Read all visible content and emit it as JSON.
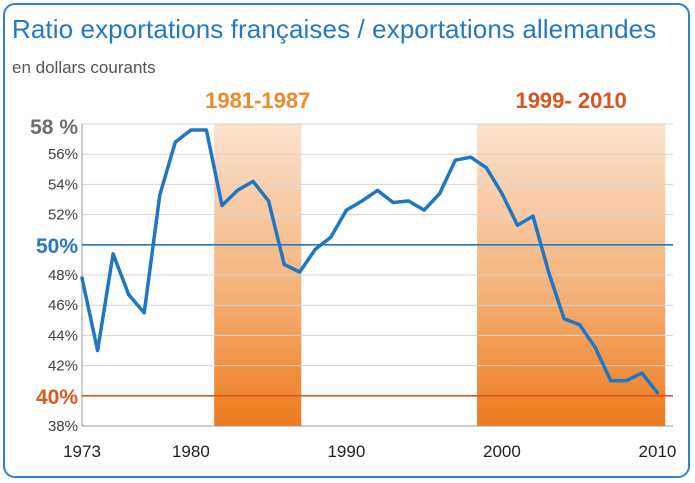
{
  "title": "Ratio exportations françaises / exportations allemandes",
  "subtitle": "en dollars courants",
  "chart_data": {
    "type": "line",
    "title": "Ratio exportations françaises / exportations allemandes",
    "subtitle": "en dollars courants",
    "xlim": [
      1973,
      2011
    ],
    "ylim": [
      38,
      58
    ],
    "y_ticks": [
      {
        "value": 38,
        "label": "38%"
      },
      {
        "value": 40,
        "label": "40%"
      },
      {
        "value": 42,
        "label": "42%"
      },
      {
        "value": 44,
        "label": "44%"
      },
      {
        "value": 46,
        "label": "46%"
      },
      {
        "value": 48,
        "label": "48%"
      },
      {
        "value": 50,
        "label": "50%"
      },
      {
        "value": 52,
        "label": "52%"
      },
      {
        "value": 54,
        "label": "54%"
      },
      {
        "value": 56,
        "label": "56%"
      },
      {
        "value": 58,
        "label": "58 %"
      }
    ],
    "x_ticks": [
      {
        "value": 1973,
        "label": "1973"
      },
      {
        "value": 1980,
        "label": "1980"
      },
      {
        "value": 1990,
        "label": "1990"
      },
      {
        "value": 2000,
        "label": "2000"
      },
      {
        "value": 2010,
        "label": "2010"
      }
    ],
    "series": [
      {
        "color": "#1f77c4",
        "x": [
          1973,
          1974,
          1975,
          1976,
          1977,
          1978,
          1979,
          1980,
          1981,
          1982,
          1983,
          1984,
          1985,
          1986,
          1987,
          1988,
          1989,
          1990,
          1991,
          1992,
          1993,
          1994,
          1995,
          1996,
          1997,
          1998,
          1999,
          2000,
          2001,
          2002,
          2003,
          2004,
          2005,
          2006,
          2007,
          2008,
          2009,
          2010
        ],
        "y": [
          47.8,
          43.0,
          49.4,
          46.7,
          45.5,
          53.3,
          56.8,
          57.6,
          57.6,
          52.6,
          53.6,
          54.2,
          52.9,
          48.7,
          48.2,
          49.7,
          50.5,
          52.3,
          52.9,
          53.6,
          52.8,
          52.9,
          52.3,
          53.4,
          55.6,
          55.8,
          55.1,
          53.4,
          51.3,
          51.9,
          48.2,
          45.1,
          44.7,
          43.2,
          41.0,
          41.0,
          41.5,
          40.2
        ]
      }
    ],
    "reference_lines": [
      {
        "value": 50,
        "label": "50%",
        "color": "#2479c2"
      },
      {
        "value": 40,
        "label": "40%",
        "color": "#d95a1b"
      }
    ],
    "shaded_periods": [
      {
        "from": 1981.5,
        "to": 1987.1,
        "label": "1981-1987",
        "label_color": "#ef8a2a"
      },
      {
        "from": 1998.4,
        "to": 2010.5,
        "label": "1999- 2010",
        "label_color": "#d9541e"
      }
    ],
    "grid": true
  }
}
